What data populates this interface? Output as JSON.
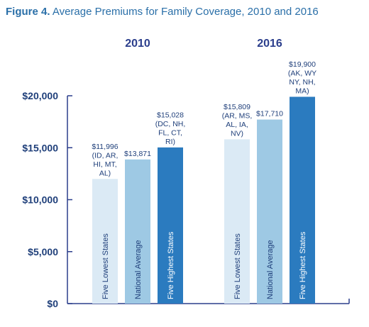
{
  "figure": {
    "label": "Figure 4.",
    "title": "Average Premiums for Family Coverage, 2010 and 2016"
  },
  "chart_data": {
    "type": "bar",
    "ylim": [
      0,
      20000
    ],
    "ytick_values": [
      0,
      5000,
      10000,
      15000,
      20000
    ],
    "ytick_labels": [
      "$0",
      "$5,000",
      "$10,000",
      "$15,000",
      "$20,000"
    ],
    "grid": false,
    "colors": {
      "axis": "#2b3e8c",
      "tick_label": "#1f3f7a",
      "group_title": "#2b3e8c",
      "data_label": "#1f3f7a",
      "bar_lowest": "#dbeaf5",
      "bar_average": "#9ec9e4",
      "bar_highest": "#2b7bbf",
      "bar_text_dark": "#1f3f7a",
      "bar_text_light": "#ffffff"
    },
    "groups": [
      {
        "name": "2010",
        "bars": [
          {
            "category": "Five Lowest States",
            "value": 11996,
            "label_lines": [
              "$11,996",
              "(ID, AR,",
              "HI, MT,",
              "AL)"
            ],
            "style": "lowest"
          },
          {
            "category": "National Average",
            "value": 13871,
            "label_lines": [
              "$13,871"
            ],
            "style": "average"
          },
          {
            "category": "Five Highest States",
            "value": 15028,
            "label_lines": [
              "$15,028",
              "(DC, NH,",
              "FL, CT,",
              "RI)"
            ],
            "style": "highest"
          }
        ]
      },
      {
        "name": "2016",
        "bars": [
          {
            "category": "Five Lowest States",
            "value": 15809,
            "label_lines": [
              "$15,809",
              "(AR, MS,",
              "AL, IA,",
              "NV)"
            ],
            "style": "lowest"
          },
          {
            "category": "National Average",
            "value": 17710,
            "label_lines": [
              "$17,710"
            ],
            "style": "average"
          },
          {
            "category": "Five Highest States",
            "value": 19900,
            "label_lines": [
              "$19,900",
              "(AK, WY",
              "NY, NH,",
              "MA)"
            ],
            "style": "highest"
          }
        ]
      }
    ]
  }
}
